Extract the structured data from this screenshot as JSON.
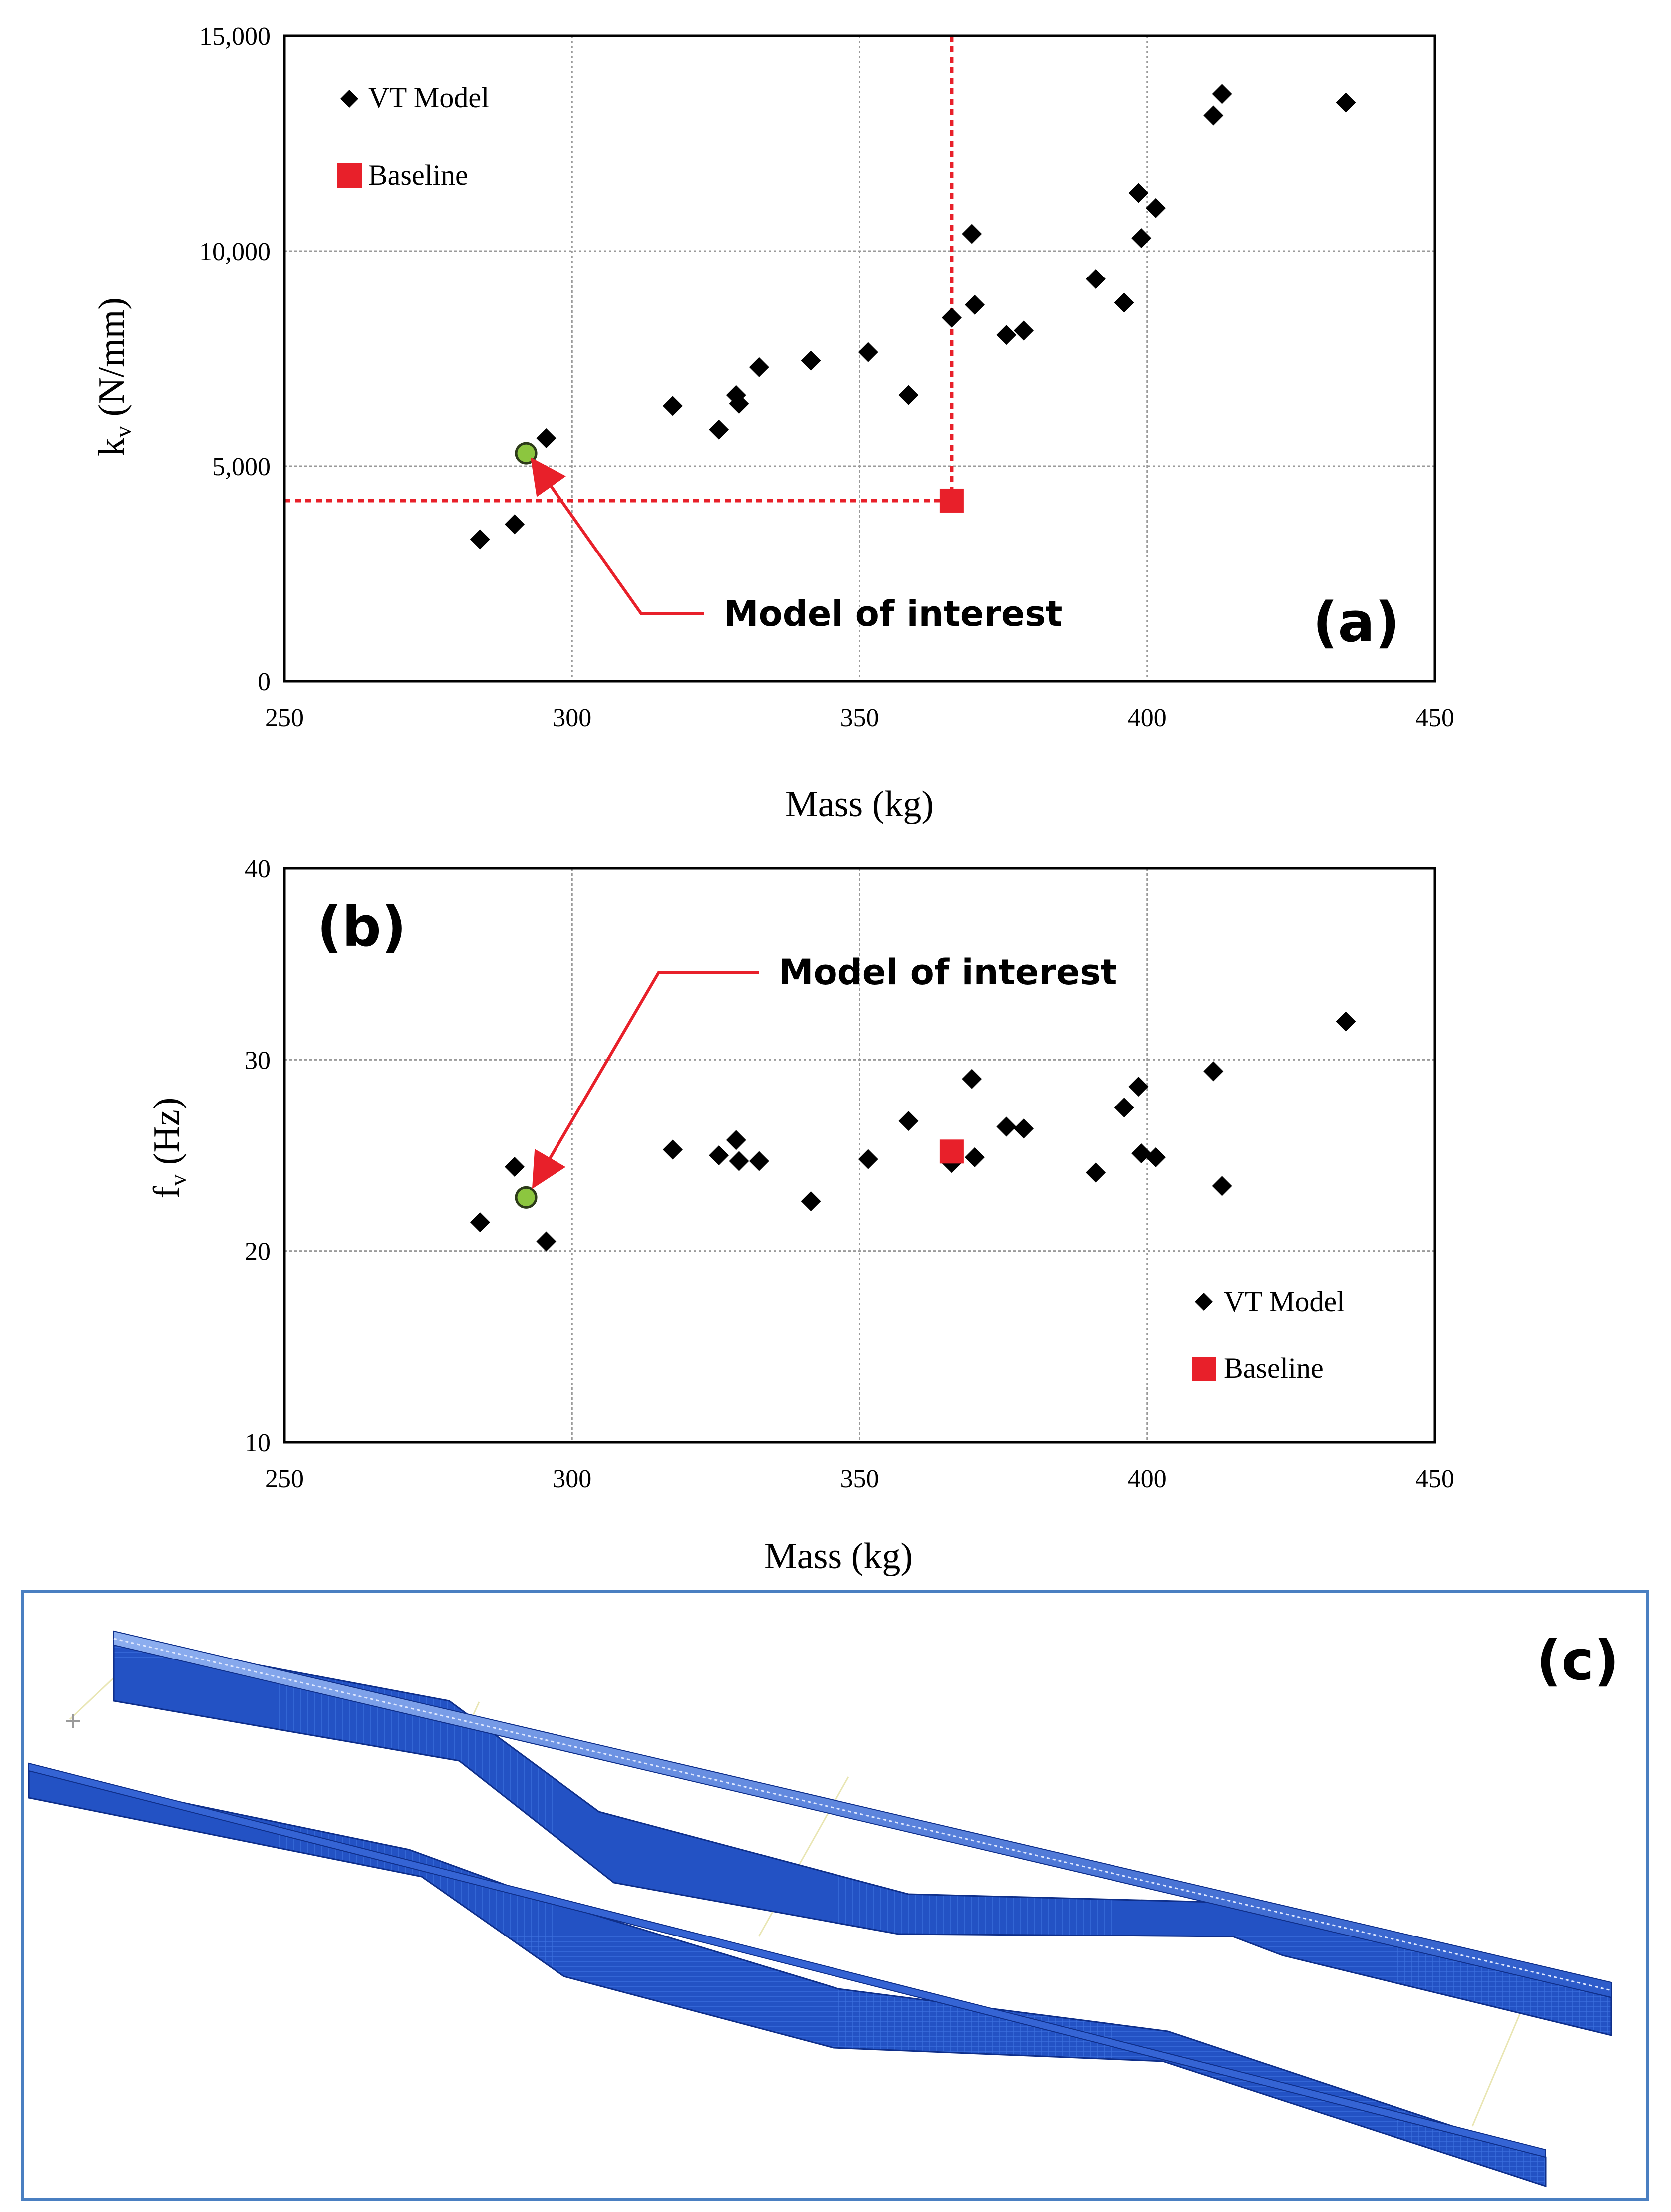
{
  "chart_data": [
    {
      "id": "a",
      "type": "scatter",
      "panel_label": "(a)",
      "xlabel": "Mass (kg)",
      "ylabel_main": "k",
      "ylabel_sub": "v",
      "ylabel_rest": " (N/mm)",
      "xlim": [
        250,
        450
      ],
      "ylim": [
        0,
        15000
      ],
      "xticks": [
        250,
        300,
        350,
        400,
        450
      ],
      "yticks": [
        0,
        5000,
        10000,
        15000
      ],
      "ytick_labels": [
        "0",
        "5,000",
        "10,000",
        "15,000"
      ],
      "grid": true,
      "legend_position": "top-left",
      "series": [
        {
          "name": "VT Model",
          "marker": "diamond",
          "color": "#000000",
          "points": [
            [
              284,
              3300
            ],
            [
              290,
              3650
            ],
            [
              295.5,
              5650
            ],
            [
              317.5,
              6400
            ],
            [
              325.5,
              5850
            ],
            [
              328.5,
              6650
            ],
            [
              329,
              6450
            ],
            [
              332.5,
              7300
            ],
            [
              341.5,
              7450
            ],
            [
              351.5,
              7650
            ],
            [
              358.5,
              6650
            ],
            [
              366,
              8450
            ],
            [
              369.5,
              10400
            ],
            [
              370,
              8750
            ],
            [
              375.5,
              8050
            ],
            [
              378.5,
              8150
            ],
            [
              391,
              9350
            ],
            [
              396,
              8800
            ],
            [
              398.5,
              11350
            ],
            [
              399,
              10300
            ],
            [
              401.5,
              11000
            ],
            [
              411.5,
              13150
            ],
            [
              413,
              13650
            ],
            [
              434.5,
              13450
            ]
          ]
        },
        {
          "name": "Baseline",
          "marker": "square",
          "color": "#e8202a",
          "points": [
            [
              366,
              4200
            ]
          ]
        }
      ],
      "highlight": {
        "label": "Model of interest",
        "x": 292,
        "y": 5300,
        "color": "#8cc63f"
      },
      "reference_lines": {
        "x": 366,
        "y": 4200,
        "color": "#e8202a",
        "style": "dotted"
      }
    },
    {
      "id": "b",
      "type": "scatter",
      "panel_label": "(b)",
      "xlabel": "Mass (kg)",
      "ylabel_main": "f",
      "ylabel_sub": "v",
      "ylabel_rest": " (Hz)",
      "xlim": [
        250,
        450
      ],
      "ylim": [
        10,
        40
      ],
      "xticks": [
        250,
        300,
        350,
        400,
        450
      ],
      "yticks": [
        10,
        20,
        30,
        40
      ],
      "ytick_labels": [
        "10",
        "20",
        "30",
        "40"
      ],
      "grid": true,
      "legend_position": "bottom-right",
      "series": [
        {
          "name": "VT Model",
          "marker": "diamond",
          "color": "#000000",
          "points": [
            [
              284,
              21.5
            ],
            [
              290,
              24.4
            ],
            [
              295.5,
              20.5
            ],
            [
              317.5,
              25.3
            ],
            [
              325.5,
              25
            ],
            [
              328.5,
              25.8
            ],
            [
              329,
              24.7
            ],
            [
              332.5,
              24.7
            ],
            [
              341.5,
              22.6
            ],
            [
              351.5,
              24.8
            ],
            [
              358.5,
              26.8
            ],
            [
              366,
              24.6
            ],
            [
              369.5,
              29
            ],
            [
              370,
              24.9
            ],
            [
              375.5,
              26.5
            ],
            [
              378.5,
              26.4
            ],
            [
              391,
              24.1
            ],
            [
              396,
              27.5
            ],
            [
              398.5,
              28.6
            ],
            [
              399,
              25.1
            ],
            [
              401.5,
              24.9
            ],
            [
              411.5,
              29.4
            ],
            [
              413,
              23.4
            ],
            [
              434.5,
              32
            ]
          ]
        },
        {
          "name": "Baseline",
          "marker": "square",
          "color": "#e8202a",
          "points": [
            [
              366,
              25.2
            ]
          ]
        }
      ],
      "highlight": {
        "label": "Model of interest",
        "x": 292,
        "y": 22.8,
        "color": "#8cc63f"
      }
    }
  ],
  "panel_c": {
    "label": "(c)",
    "border_color": "#4a7fc1",
    "mesh_color": "#1e4fb8"
  }
}
